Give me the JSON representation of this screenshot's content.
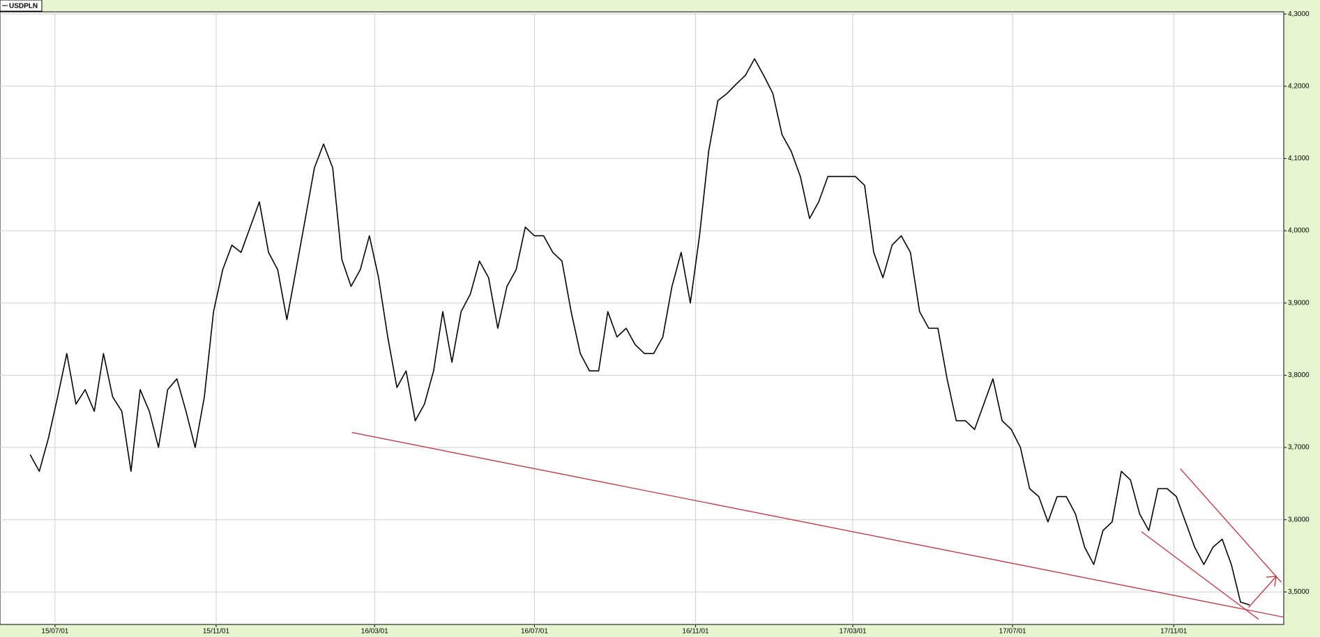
{
  "chart_data": {
    "type": "line",
    "x": [
      "15/06/12",
      "15/06/19",
      "15/06/26",
      "15/07/03",
      "15/07/10",
      "15/07/17",
      "15/07/24",
      "15/07/31",
      "15/08/07",
      "15/08/14",
      "15/08/21",
      "15/08/28",
      "15/09/04",
      "15/09/11",
      "15/09/18",
      "15/09/25",
      "15/10/02",
      "15/10/09",
      "15/10/16",
      "15/10/23",
      "15/10/30",
      "15/11/06",
      "15/11/13",
      "15/11/20",
      "15/11/27",
      "15/12/04",
      "15/12/11",
      "15/12/18",
      "15/12/25",
      "16/01/01",
      "16/01/08",
      "16/01/15",
      "16/01/22",
      "16/01/29",
      "16/02/05",
      "16/02/12",
      "16/02/19",
      "16/02/26",
      "16/03/04",
      "16/03/11",
      "16/03/18",
      "16/03/25",
      "16/04/01",
      "16/04/08",
      "16/04/15",
      "16/04/22",
      "16/04/29",
      "16/05/06",
      "16/05/13",
      "16/05/20",
      "16/05/27",
      "16/06/03",
      "16/06/10",
      "16/06/17",
      "16/06/24",
      "16/07/01",
      "16/07/08",
      "16/07/15",
      "16/07/22",
      "16/07/29",
      "16/08/05",
      "16/08/12",
      "16/08/19",
      "16/08/26",
      "16/09/02",
      "16/09/09",
      "16/09/16",
      "16/09/23",
      "16/09/30",
      "16/10/07",
      "16/10/14",
      "16/10/21",
      "16/10/28",
      "16/11/04",
      "16/11/11",
      "16/11/18",
      "16/11/25",
      "16/12/02",
      "16/12/09",
      "16/12/16",
      "16/12/23",
      "16/12/30",
      "17/01/06",
      "17/01/13",
      "17/01/20",
      "17/01/27",
      "17/02/03",
      "17/02/10",
      "17/02/17",
      "17/02/24",
      "17/03/03",
      "17/03/10",
      "17/03/17",
      "17/03/24",
      "17/03/31",
      "17/04/07",
      "17/04/14",
      "17/04/21",
      "17/04/28",
      "17/05/05",
      "17/05/12",
      "17/05/19",
      "17/05/26",
      "17/06/02",
      "17/06/09",
      "17/06/16",
      "17/06/23",
      "17/06/30",
      "17/07/07",
      "17/07/14",
      "17/07/21",
      "17/07/28",
      "17/08/04",
      "17/08/11",
      "17/08/18",
      "17/08/25",
      "17/09/01",
      "17/09/08",
      "17/09/15",
      "17/09/22",
      "17/09/29",
      "17/10/06",
      "17/10/13",
      "17/10/20",
      "17/10/27",
      "17/11/03",
      "17/11/10",
      "17/11/17",
      "17/11/24",
      "17/12/01",
      "17/12/08",
      "17/12/15",
      "17/12/22",
      "17/12/29"
    ],
    "series": [
      {
        "name": "USDPLN",
        "color": "#000000",
        "values": [
          3.69,
          3.667,
          3.713,
          3.77,
          3.83,
          3.76,
          3.78,
          3.75,
          3.83,
          3.77,
          3.75,
          3.667,
          3.78,
          3.75,
          3.7,
          3.78,
          3.795,
          3.75,
          3.7,
          3.77,
          3.888,
          3.946,
          3.98,
          3.97,
          4.005,
          4.04,
          3.97,
          3.946,
          3.877,
          3.946,
          4.016,
          4.087,
          4.12,
          4.087,
          3.96,
          3.923,
          3.946,
          3.993,
          3.935,
          3.853,
          3.783,
          3.806,
          3.737,
          3.76,
          3.806,
          3.888,
          3.818,
          3.888,
          3.912,
          3.958,
          3.935,
          3.865,
          3.923,
          3.946,
          4.005,
          3.993,
          3.993,
          3.97,
          3.958,
          3.888,
          3.83,
          3.806,
          3.806,
          3.888,
          3.853,
          3.865,
          3.842,
          3.83,
          3.83,
          3.853,
          3.923,
          3.97,
          3.9,
          3.993,
          4.11,
          4.18,
          4.19,
          4.203,
          4.215,
          4.238,
          4.215,
          4.19,
          4.133,
          4.11,
          4.075,
          4.017,
          4.04,
          4.075,
          4.075,
          4.075,
          4.075,
          4.063,
          3.97,
          3.935,
          3.98,
          3.993,
          3.97,
          3.888,
          3.865,
          3.865,
          3.795,
          3.737,
          3.737,
          3.725,
          3.76,
          3.795,
          3.737,
          3.725,
          3.7,
          3.643,
          3.632,
          3.597,
          3.632,
          3.632,
          3.608,
          3.562,
          3.538,
          3.585,
          3.597,
          3.667,
          3.655,
          3.608,
          3.585,
          3.643,
          3.643,
          3.632,
          3.597,
          3.562,
          3.538,
          3.562,
          3.573,
          3.538,
          3.486,
          3.482
        ]
      }
    ],
    "xlim": [
      "15/05/20",
      "18/01/24"
    ],
    "xticks": [
      "15/07/01",
      "15/11/01",
      "16/03/01",
      "16/07/01",
      "16/11/01",
      "17/03/01",
      "17/07/01",
      "17/11/01"
    ],
    "ylim": [
      3.455,
      4.303
    ],
    "yticks": [
      {
        "value": 3.5,
        "label": "3,5000"
      },
      {
        "value": 3.6,
        "label": "3,6000"
      },
      {
        "value": 3.7,
        "label": "3,7000"
      },
      {
        "value": 3.8,
        "label": "3,8000"
      },
      {
        "value": 3.9,
        "label": "3,9000"
      },
      {
        "value": 4.0,
        "label": "4,0000"
      },
      {
        "value": 4.1,
        "label": "4,1000"
      },
      {
        "value": 4.2,
        "label": "4,2000"
      },
      {
        "value": 4.3,
        "label": "4,3000"
      }
    ],
    "grid": true
  }
}
